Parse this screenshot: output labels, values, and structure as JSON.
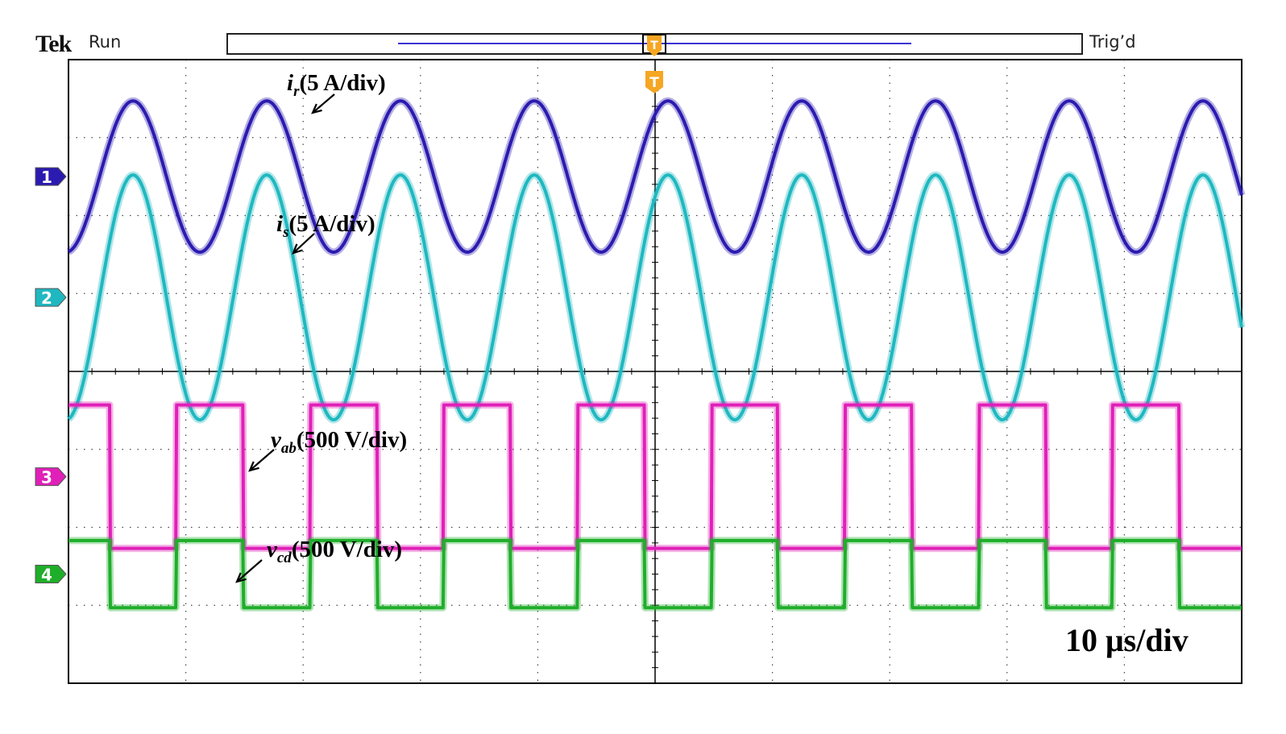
{
  "header": {
    "brand": "Tek",
    "run_state": "Run",
    "trigger_state": "Trig’d",
    "trigger_marker": "T"
  },
  "timebase_label": "10 μs/div",
  "colors": {
    "ch1": "#2b1bb0",
    "ch2": "#1fb8c0",
    "ch3": "#e020b8",
    "ch4": "#1fae2a",
    "trigger": "#f5a623",
    "grid": "#000000"
  },
  "channels": [
    {
      "number": "1",
      "label_sym": "i",
      "label_sub": "r",
      "label_rest": "(5 A/div)"
    },
    {
      "number": "2",
      "label_sym": "i",
      "label_sub": "s",
      "label_rest": "(5 A/div)"
    },
    {
      "number": "3",
      "label_sym": "v",
      "label_sub": "ab",
      "label_rest": "(500 V/div)"
    },
    {
      "number": "4",
      "label_sym": "v",
      "label_sub": "cd",
      "label_rest": "(500 V/div)"
    }
  ],
  "chart_data": {
    "type": "line",
    "x_unit": "div",
    "x_range": [
      0,
      10
    ],
    "y_unit": "div",
    "y_range": [
      -4,
      4
    ],
    "grid": true,
    "waveform_period_div": 1.14,
    "series": [
      {
        "channel": "1",
        "shape": "sine",
        "center_div": 2.5,
        "amplitude_div": 0.97,
        "phase_div": 0.0
      },
      {
        "channel": "2",
        "shape": "sine",
        "center_div": 0.95,
        "amplitude_div": 1.57,
        "phase_div": 0.0
      },
      {
        "channel": "3",
        "shape": "square",
        "center_div": -1.35,
        "amplitude_div": 0.92,
        "phase_div": 0.0
      },
      {
        "channel": "4",
        "shape": "square",
        "center_div": -2.6,
        "amplitude_div": 0.43,
        "phase_div": 0.0
      }
    ]
  }
}
